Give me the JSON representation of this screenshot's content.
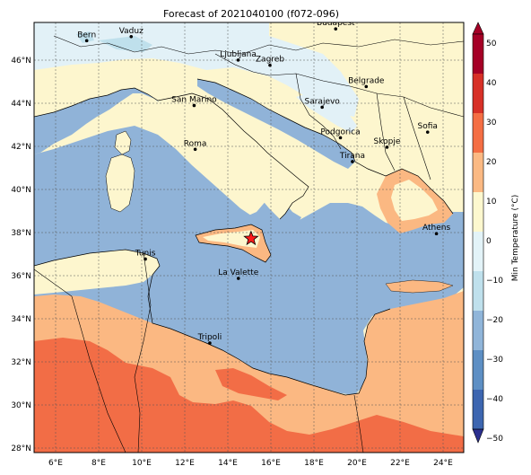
{
  "map": {
    "title": "Forecast of 2021040100 (f072-096)",
    "lon_ticks": [
      "6°E",
      "8°E",
      "10°E",
      "12°E",
      "14°E",
      "16°E",
      "18°E",
      "20°E",
      "22°E",
      "24°E"
    ],
    "lat_ticks": [
      "28°N",
      "30°N",
      "32°N",
      "34°N",
      "36°N",
      "38°N",
      "40°N",
      "42°N",
      "44°N",
      "46°N"
    ],
    "extent": {
      "lon_min": 5,
      "lon_max": 25,
      "lat_min": 27.8,
      "lat_max": 47.8
    },
    "cities": [
      {
        "name": "Bern",
        "lon": 7.45,
        "lat": 46.95
      },
      {
        "name": "Vaduz",
        "lon": 9.52,
        "lat": 47.14
      },
      {
        "name": "Budapest",
        "lon": 19.04,
        "lat": 47.5
      },
      {
        "name": "Ljubljana",
        "lon": 14.5,
        "lat": 46.05
      },
      {
        "name": "Zagreb",
        "lon": 15.98,
        "lat": 45.81
      },
      {
        "name": "Belgrade",
        "lon": 20.46,
        "lat": 44.82
      },
      {
        "name": "San Marino",
        "lon": 12.45,
        "lat": 43.94
      },
      {
        "name": "Sarajevo",
        "lon": 18.41,
        "lat": 43.86
      },
      {
        "name": "Sofia",
        "lon": 23.32,
        "lat": 42.7
      },
      {
        "name": "Podgorica",
        "lon": 19.26,
        "lat": 42.44
      },
      {
        "name": "Skopje",
        "lon": 21.43,
        "lat": 42.0
      },
      {
        "name": "Roma",
        "lon": 12.5,
        "lat": 41.9
      },
      {
        "name": "Tirana",
        "lon": 19.82,
        "lat": 41.33
      },
      {
        "name": "Athens",
        "lon": 23.73,
        "lat": 37.98
      },
      {
        "name": "Tunis",
        "lon": 10.18,
        "lat": 36.8
      },
      {
        "name": "La Valette",
        "lon": 14.51,
        "lat": 35.9
      },
      {
        "name": "Tripoli",
        "lon": 13.18,
        "lat": 32.89
      }
    ],
    "star_marker": {
      "lon": 15.1,
      "lat": 37.75,
      "color": "#ff1a1a"
    }
  },
  "colorbar": {
    "label": "Min Temperature (°C)",
    "ticks": [
      "50",
      "40",
      "30",
      "20",
      "10",
      "0",
      "−10",
      "−20",
      "−30",
      "−40",
      "−50"
    ],
    "colors": {
      "m50": "#2b2f8f",
      "m40": "#3d66b0",
      "m30": "#5d8fc4",
      "m20": "#90b5d9",
      "m10": "#bfe0ec",
      "m0": "#e3f3f8",
      "p0": "#fdf8cf",
      "p10": "#fbb983",
      "p20": "#f46e44",
      "p30": "#d73027",
      "p40": "#a50026"
    }
  },
  "colors": {
    "sea": "#90b3d8",
    "land_cold": "#fdf6ce",
    "land_alps": "#e2f1f7",
    "land_peach": "#fbb882",
    "land_red": "#f26d46"
  }
}
